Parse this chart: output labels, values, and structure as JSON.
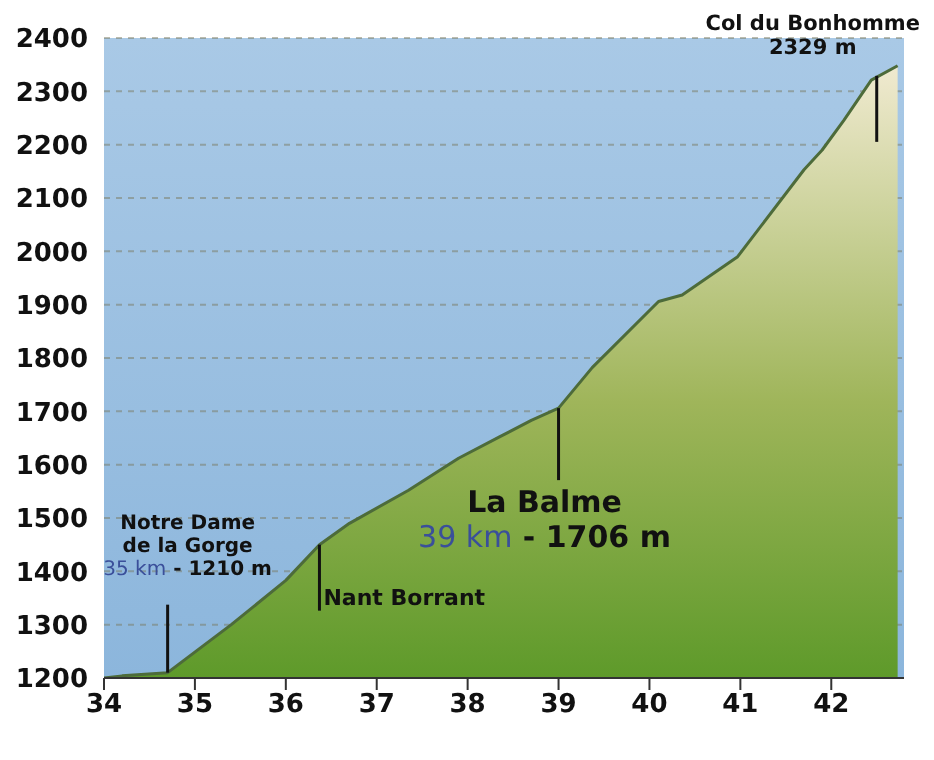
{
  "chart_data": {
    "type": "area",
    "x": [
      34,
      34.2,
      34.7,
      35.4,
      36,
      36.37,
      36.7,
      37.35,
      37.9,
      38.35,
      38.7,
      39,
      39.37,
      40.1,
      40.36,
      40.97,
      41.7,
      41.9,
      42.14,
      42.44,
      42.73
    ],
    "series": [
      {
        "color": "#9fb55a",
        "values": [
          1200,
          1204,
          1210,
          1300,
          1383,
          1450,
          1490,
          1552,
          1612,
          1652,
          1683,
          1706,
          1782,
          1906,
          1918,
          1990,
          2153,
          2190,
          2246,
          2321,
          2348
        ]
      }
    ],
    "xlim": [
      34,
      42.8
    ],
    "xticks": [
      34,
      35,
      36,
      37,
      38,
      39,
      40,
      41,
      42
    ],
    "ylim": [
      1200,
      2400
    ],
    "yticks": [
      1200,
      1300,
      1400,
      1500,
      1600,
      1700,
      1800,
      1900,
      2000,
      2100,
      2200,
      2300,
      2400
    ],
    "grid": "y",
    "annotations": [
      {
        "text": "Notre Dame\nde la Gorge\n35 km - 1210 m",
        "x": 34.7,
        "y": 1210
      },
      {
        "text": "Nant Borrant",
        "x": 36.37,
        "y": 1450
      },
      {
        "text": "La Balme\n39 km - 1706 m",
        "x": 39,
        "y": 1706
      },
      {
        "text": "Col du Bonhomme\n2329 m",
        "x": 42.5,
        "y": 2329
      }
    ]
  }
}
